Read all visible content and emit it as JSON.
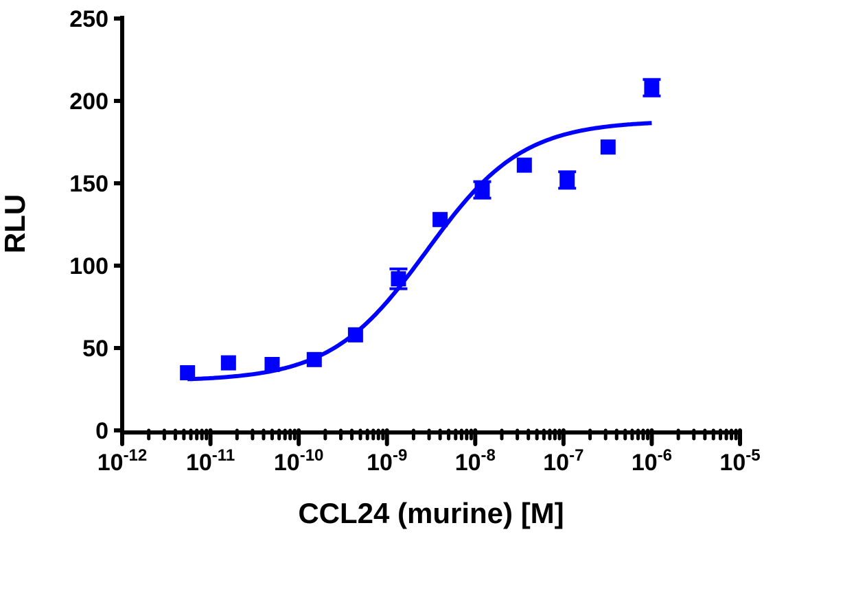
{
  "chart_data": {
    "type": "scatter",
    "title": "",
    "xlabel": "CCL24 (murine) [M]",
    "ylabel": "RLU",
    "xscale": "log",
    "xlim": [
      1e-12,
      1e-05
    ],
    "ylim": [
      0,
      250
    ],
    "x_ticks": [
      {
        "base": "10",
        "exp": "-12",
        "value": 1e-12
      },
      {
        "base": "10",
        "exp": "-11",
        "value": 1e-11
      },
      {
        "base": "10",
        "exp": "-10",
        "value": 1e-10
      },
      {
        "base": "10",
        "exp": "-9",
        "value": 1e-09
      },
      {
        "base": "10",
        "exp": "-8",
        "value": 1e-08
      },
      {
        "base": "10",
        "exp": "-7",
        "value": 1e-07
      },
      {
        "base": "10",
        "exp": "-6",
        "value": 1e-06
      },
      {
        "base": "10",
        "exp": "-5",
        "value": 1e-05
      }
    ],
    "y_ticks": [
      "0",
      "50",
      "100",
      "150",
      "200",
      "250"
    ],
    "grid": false,
    "color": "#0000ff",
    "series": [
      {
        "marker": "square",
        "x": [
          5.5e-12,
          1.6e-11,
          5e-11,
          1.5e-10,
          4.4e-10,
          1.35e-09,
          4e-09,
          1.2e-08,
          3.6e-08,
          1.1e-07,
          3.2e-07,
          1e-06
        ],
        "y": [
          35,
          41,
          40,
          43,
          58,
          92,
          128,
          146,
          161,
          152,
          172,
          208
        ],
        "error": [
          2,
          2,
          2,
          2,
          2,
          6,
          2,
          5,
          2,
          5,
          2,
          5
        ]
      }
    ],
    "fit": {
      "type": "sigmoidal dose-response",
      "bottom": 30,
      "top": 188,
      "log_ec50": -8.55,
      "hill": 0.8,
      "x_range": [
        5.5e-12,
        1e-06
      ]
    }
  }
}
